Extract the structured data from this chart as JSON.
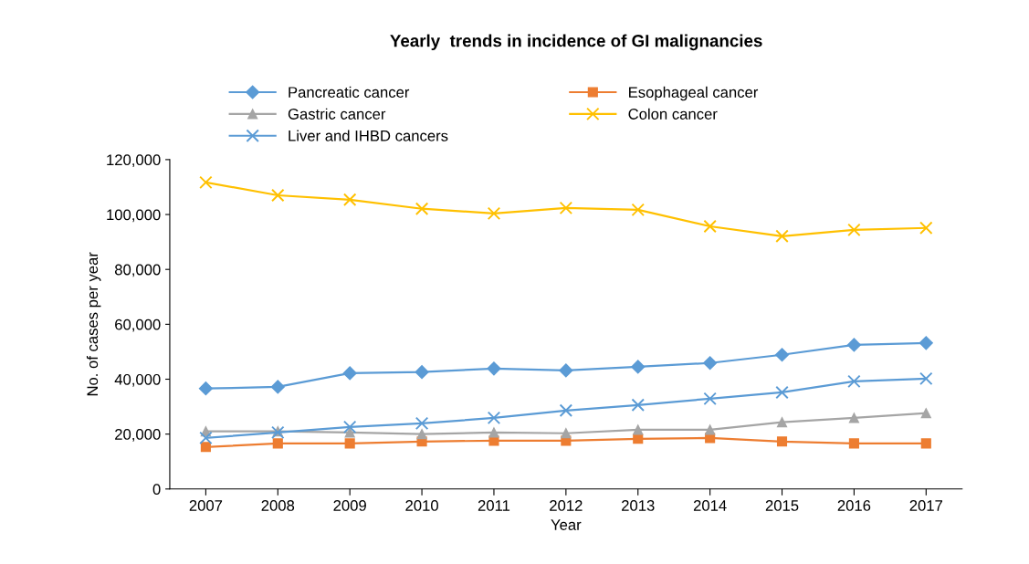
{
  "chart_data": {
    "type": "line",
    "title": "Yearly  trends in incidence of GI malignancies",
    "xlabel": "Year",
    "ylabel": "No. of cases per year",
    "categories": [
      "2007",
      "2008",
      "2009",
      "2010",
      "2011",
      "2012",
      "2013",
      "2014",
      "2015",
      "2016",
      "2017"
    ],
    "series": [
      {
        "name": "Pancreatic cancer",
        "color": "#5b9bd5",
        "marker": "diamond",
        "values": [
          36600,
          37200,
          42200,
          42600,
          43900,
          43200,
          44500,
          45900,
          48900,
          52500,
          53200
        ]
      },
      {
        "name": "Esophageal cancer",
        "color": "#ed7d31",
        "marker": "square",
        "values": [
          15300,
          16600,
          16600,
          17300,
          17600,
          17600,
          18300,
          18600,
          17300,
          16600,
          16600
        ]
      },
      {
        "name": "Gastric cancer",
        "color": "#a5a5a5",
        "marker": "triangle",
        "values": [
          21000,
          21000,
          20600,
          20000,
          20600,
          20300,
          21600,
          21600,
          24300,
          25900,
          27600
        ]
      },
      {
        "name": "Colon cancer",
        "color": "#ffc000",
        "marker": "cross",
        "values": [
          111700,
          107000,
          105400,
          102100,
          100400,
          102400,
          101700,
          95700,
          92100,
          94400,
          95100
        ]
      },
      {
        "name": "Liver and IHBD cancers",
        "color": "#5b9bd5",
        "marker": "cross",
        "values": [
          18600,
          20600,
          22600,
          23900,
          25900,
          28600,
          30600,
          32900,
          35200,
          39200,
          40200
        ]
      }
    ],
    "ylim": [
      0,
      120000
    ],
    "yticks": [
      {
        "value": 0,
        "label": "0"
      },
      {
        "value": 20000,
        "label": "20,000"
      },
      {
        "value": 40000,
        "label": "40,000"
      },
      {
        "value": 60000,
        "label": "60,000"
      },
      {
        "value": 80000,
        "label": "80,000"
      },
      {
        "value": 100000,
        "label": "100,000"
      },
      {
        "value": 120000,
        "label": "120,000"
      }
    ],
    "grid": false,
    "legend": "top",
    "line_style": "solid"
  }
}
